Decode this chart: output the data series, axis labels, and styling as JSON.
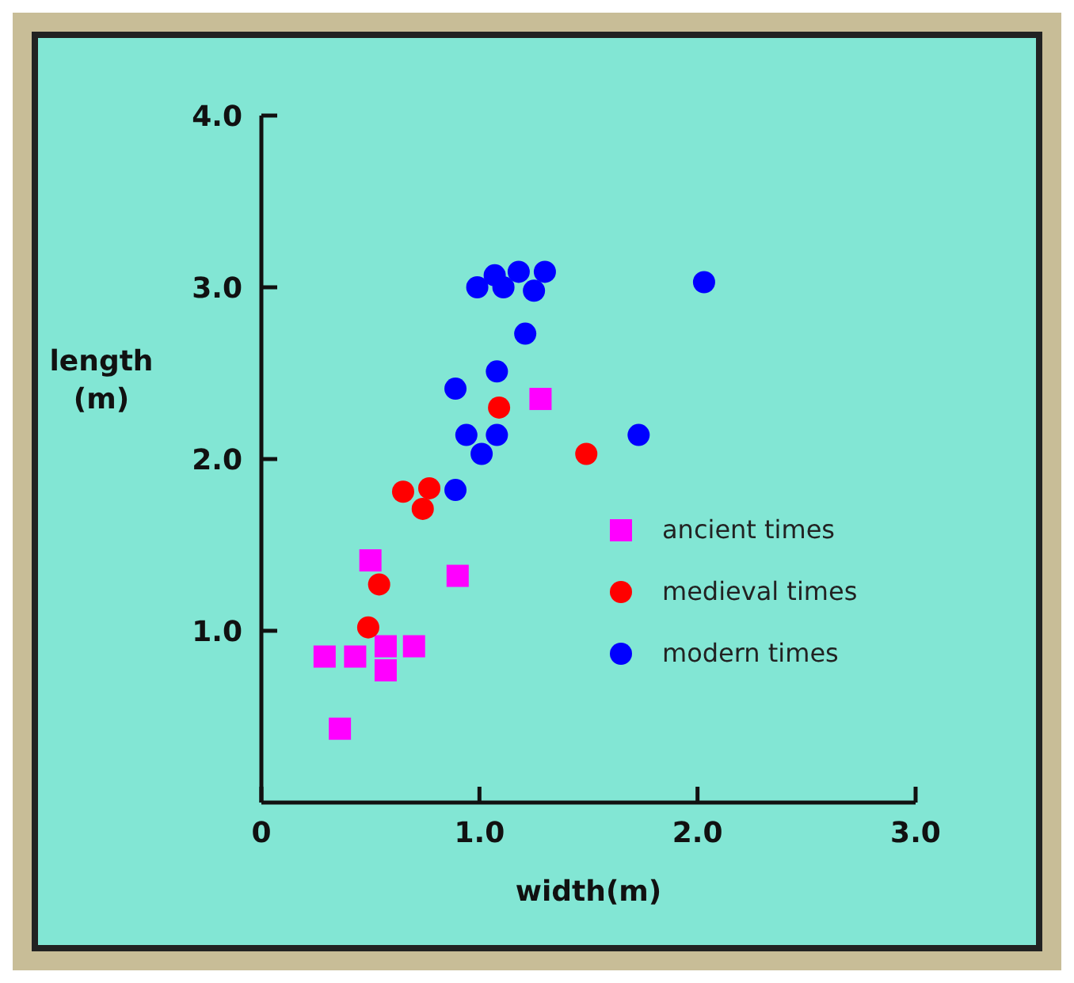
{
  "chart_data": {
    "type": "scatter",
    "xlabel": "width(m)",
    "ylabel": "length\n(m)",
    "xlim": [
      0,
      3
    ],
    "ylim": [
      0,
      4
    ],
    "xticks": [
      0,
      {
        "value": 1,
        "label": "1.0"
      },
      {
        "value": 2,
        "label": "2.0"
      },
      {
        "value": 3,
        "label": "3.0"
      }
    ],
    "yticks": [
      {
        "value": 1,
        "label": "1.0"
      },
      {
        "value": 2,
        "label": "2.0"
      },
      {
        "value": 3,
        "label": "3.0"
      },
      {
        "value": 4,
        "label": "4.0"
      }
    ],
    "grid": false,
    "legend": "right",
    "series": [
      {
        "name": "ancient times",
        "color": "#ff00ff",
        "marker": "square",
        "x": [
          1.28,
          0.5,
          0.9,
          0.29,
          0.43,
          0.57,
          0.7,
          0.57,
          0.36
        ],
        "values": [
          2.35,
          1.41,
          1.32,
          0.85,
          0.85,
          0.91,
          0.91,
          0.77,
          0.43
        ]
      },
      {
        "name": "medieval times",
        "color": "#ff0000",
        "marker": "circle",
        "x": [
          1.09,
          1.49,
          0.65,
          0.77,
          0.74,
          0.54,
          0.49
        ],
        "values": [
          2.3,
          2.03,
          1.81,
          1.83,
          1.71,
          1.27,
          1.02
        ]
      },
      {
        "name": "modern times",
        "color": "#0000ff",
        "marker": "circle",
        "x": [
          1.07,
          1.18,
          1.3,
          0.99,
          1.11,
          1.25,
          2.03,
          1.21,
          1.08,
          0.89,
          0.94,
          1.08,
          1.01,
          1.73,
          0.89
        ],
        "values": [
          3.07,
          3.09,
          3.09,
          3.0,
          3.0,
          2.98,
          3.03,
          2.73,
          2.51,
          2.41,
          2.14,
          2.14,
          2.03,
          2.14,
          1.82
        ]
      }
    ]
  }
}
